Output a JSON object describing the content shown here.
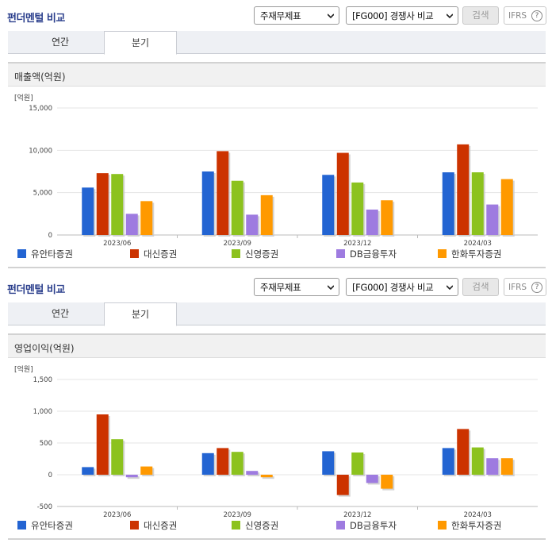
{
  "sections": [
    {
      "title": "펀더멘털 비교",
      "select_a": "주재무제표",
      "select_b": "[FG000] 경쟁사 비교",
      "search_label": "검색",
      "ifrs_label": "IFRS",
      "help_label": "?",
      "tabs": [
        "연간",
        "분기"
      ],
      "panel_title": "매출액(억원)",
      "unit_label": "[억원]"
    },
    {
      "title": "펀더멘털 비교",
      "select_a": "주재무제표",
      "select_b": "[FG000] 경쟁사 비교",
      "search_label": "검색",
      "ifrs_label": "IFRS",
      "help_label": "?",
      "tabs": [
        "연간",
        "분기"
      ],
      "panel_title": "영업이익(억원)",
      "unit_label": "[억원]"
    }
  ],
  "legend": [
    {
      "name": "유안타증권",
      "color": "#2364d2"
    },
    {
      "name": "대신증권",
      "color": "#cc3300"
    },
    {
      "name": "신영증권",
      "color": "#8cc21e"
    },
    {
      "name": "DB금융투자",
      "color": "#9e7be0"
    },
    {
      "name": "한화투자증권",
      "color": "#ff9900"
    }
  ],
  "chart_data": [
    {
      "type": "bar",
      "title": "매출액(억원)",
      "ylabel": "[억원]",
      "categories": [
        "2023/06",
        "2023/09",
        "2023/12",
        "2024/03"
      ],
      "yticks": [
        "0",
        "5,000",
        "10,000",
        "15,000"
      ],
      "ylim": [
        0,
        15000
      ],
      "series": [
        {
          "name": "유안타증권",
          "color": "#2364d2",
          "values": [
            5600,
            7500,
            7100,
            7400
          ]
        },
        {
          "name": "대신증권",
          "color": "#cc3300",
          "values": [
            7300,
            9900,
            9700,
            10700
          ]
        },
        {
          "name": "신영증권",
          "color": "#8cc21e",
          "values": [
            7200,
            6400,
            6200,
            7400
          ]
        },
        {
          "name": "DB금융투자",
          "color": "#9e7be0",
          "values": [
            2500,
            2400,
            3000,
            3600
          ]
        },
        {
          "name": "한화투자증권",
          "color": "#ff9900",
          "values": [
            4000,
            4700,
            4100,
            6600
          ]
        }
      ],
      "grid": true
    },
    {
      "type": "bar",
      "title": "영업이익(억원)",
      "ylabel": "[억원]",
      "categories": [
        "2023/06",
        "2023/09",
        "2023/12",
        "2024/03"
      ],
      "yticks": [
        "-500",
        "0",
        "500",
        "1,000",
        "1,500"
      ],
      "ylim": [
        -500,
        1500
      ],
      "series": [
        {
          "name": "유안타증권",
          "color": "#2364d2",
          "values": [
            120,
            340,
            370,
            420
          ]
        },
        {
          "name": "대신증권",
          "color": "#cc3300",
          "values": [
            950,
            420,
            -320,
            720
          ]
        },
        {
          "name": "신영증권",
          "color": "#8cc21e",
          "values": [
            560,
            360,
            350,
            430
          ]
        },
        {
          "name": "DB금융투자",
          "color": "#9e7be0",
          "values": [
            -40,
            60,
            -130,
            260
          ]
        },
        {
          "name": "한화투자증권",
          "color": "#ff9900",
          "values": [
            130,
            -40,
            -220,
            260
          ]
        }
      ],
      "grid": true
    }
  ]
}
